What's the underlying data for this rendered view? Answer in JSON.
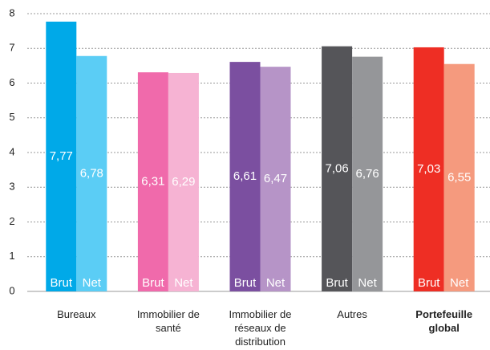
{
  "chart_data": {
    "type": "bar",
    "categories": [
      "Bureaux",
      "Immobilier de santé",
      "Immobilier de réseaux de distribution",
      "Autres",
      "Portefeuille global"
    ],
    "bold_category_index": 4,
    "series": [
      {
        "name": "Brut",
        "color": [
          "#00a9e8",
          "#f06aab",
          "#7b4fa0",
          "#555559",
          "#ee2e24"
        ],
        "values": [
          7.77,
          6.31,
          6.61,
          7.06,
          7.03
        ],
        "value_labels": [
          "7,77",
          "6,31",
          "6,61",
          "7,06",
          "7,03"
        ]
      },
      {
        "name": "Net",
        "color": [
          "#5bcdf5",
          "#f6b3d3",
          "#b694c7",
          "#959699",
          "#f59a7e"
        ],
        "values": [
          6.78,
          6.29,
          6.47,
          6.76,
          6.55
        ],
        "value_labels": [
          "6,78",
          "6,29",
          "6,47",
          "6,76",
          "6,55"
        ]
      }
    ],
    "ylim": [
      0,
      8
    ],
    "yticks": [
      0,
      1,
      2,
      3,
      4,
      5,
      6,
      7,
      8
    ],
    "grid": true
  }
}
